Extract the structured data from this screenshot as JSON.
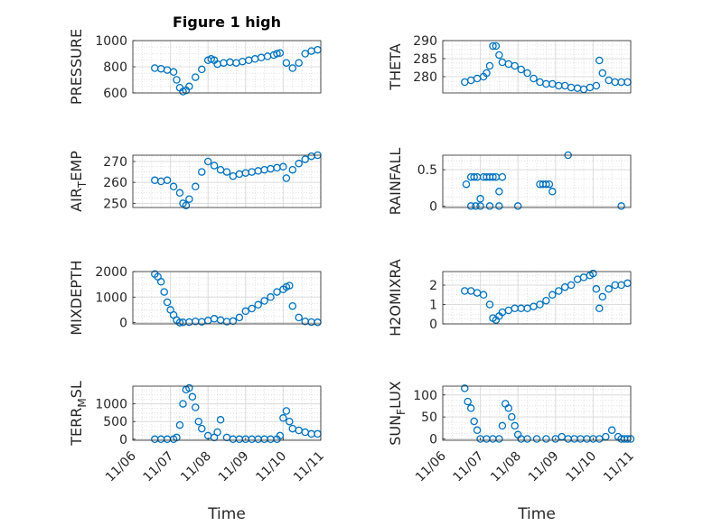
{
  "figure": {
    "title": "Figure 1 high",
    "xlabel": "Time"
  },
  "colors": {
    "marker": "#0072BD",
    "grid": "#d9d9d9",
    "axis": "#262626"
  },
  "chart_data": [
    {
      "type": "scatter",
      "ylabel": "PRESSURE",
      "ylabel_parts": [
        "PRESSURE"
      ],
      "xlim": [
        "11/06",
        "11/11"
      ],
      "ylim": [
        600,
        1000
      ],
      "yticks": [
        600,
        800,
        1000
      ],
      "xticks": [],
      "grid": true,
      "title": "Figure 1 high",
      "x": [
        "11/06 14:00",
        "11/06 18:00",
        "11/06 22:00",
        "11/07 02:00",
        "11/07 04:00",
        "11/07 06:00",
        "11/07 08:00",
        "11/07 10:00",
        "11/07 12:00",
        "11/07 16:00",
        "11/07 20:00",
        "11/08 00:00",
        "11/08 02:00",
        "11/08 04:00",
        "11/08 06:00",
        "11/08 10:00",
        "11/08 14:00",
        "11/08 18:00",
        "11/08 22:00",
        "11/09 02:00",
        "11/09 06:00",
        "11/09 10:00",
        "11/09 14:00",
        "11/09 18:00",
        "11/09 20:00",
        "11/09 22:00",
        "11/10 02:00",
        "11/10 06:00",
        "11/10 10:00",
        "11/10 14:00",
        "11/10 18:00",
        "11/10 22:00",
        "11/11 02:00",
        "11/11 06:00",
        "11/11 10:00",
        "11/11 14:00",
        "11/11 18:00",
        "11/11 22:00",
        "11/12 02:00",
        "11/12 06:00",
        "11/12 08:00"
      ],
      "y": [
        790,
        785,
        775,
        760,
        700,
        640,
        610,
        620,
        650,
        720,
        780,
        850,
        860,
        850,
        820,
        830,
        835,
        830,
        840,
        850,
        860,
        870,
        880,
        890,
        900,
        905,
        830,
        790,
        830,
        900,
        920,
        930,
        935,
        940,
        940,
        935,
        935,
        935,
        935,
        930,
        930
      ]
    },
    {
      "type": "scatter",
      "ylabel": "THETA",
      "ylabel_parts": [
        "THETA"
      ],
      "xlim": [
        "11/06",
        "11/11"
      ],
      "ylim": [
        275.5,
        290
      ],
      "yticks": [
        280,
        285,
        290
      ],
      "xticks": [],
      "grid": true,
      "x": [
        "11/06 14:00",
        "11/06 18:00",
        "11/06 22:00",
        "11/07 02:00",
        "11/07 04:00",
        "11/07 06:00",
        "11/07 08:00",
        "11/07 10:00",
        "11/07 12:00",
        "11/07 14:00",
        "11/07 18:00",
        "11/07 22:00",
        "11/08 02:00",
        "11/08 06:00",
        "11/08 10:00",
        "11/08 14:00",
        "11/08 18:00",
        "11/08 22:00",
        "11/09 02:00",
        "11/09 06:00",
        "11/09 10:00",
        "11/09 14:00",
        "11/09 18:00",
        "11/09 22:00",
        "11/10 02:00",
        "11/10 04:00",
        "11/10 06:00",
        "11/10 10:00",
        "11/10 14:00",
        "11/10 18:00",
        "11/10 22:00",
        "11/11 02:00",
        "11/11 06:00",
        "11/11 10:00",
        "11/11 14:00",
        "11/11 18:00",
        "11/11 22:00"
      ],
      "y": [
        278.5,
        279.0,
        279.5,
        280.0,
        281.0,
        283.0,
        288.5,
        288.5,
        286.0,
        284.0,
        283.5,
        283.0,
        282.0,
        281.0,
        279.5,
        278.5,
        278.0,
        278.0,
        277.5,
        277.5,
        277.0,
        276.8,
        276.5,
        277.0,
        277.5,
        284.5,
        281.0,
        279.0,
        278.5,
        278.5,
        278.5,
        278.5,
        278.6,
        278.6,
        278.7,
        278.7,
        278.6
      ]
    },
    {
      "type": "scatter",
      "ylabel": "AIR_TEMP",
      "ylabel_parts": [
        "AIR",
        "T",
        "EMP"
      ],
      "xlim": [
        "11/06",
        "11/11"
      ],
      "ylim": [
        248,
        273
      ],
      "yticks": [
        250,
        260,
        270
      ],
      "xticks": [],
      "grid": true,
      "x": [
        "11/06 14:00",
        "11/06 18:00",
        "11/06 22:00",
        "11/07 02:00",
        "11/07 06:00",
        "11/07 08:00",
        "11/07 10:00",
        "11/07 12:00",
        "11/07 16:00",
        "11/07 20:00",
        "11/08 00:00",
        "11/08 04:00",
        "11/08 08:00",
        "11/08 12:00",
        "11/08 16:00",
        "11/08 20:00",
        "11/09 00:00",
        "11/09 04:00",
        "11/09 08:00",
        "11/09 12:00",
        "11/09 16:00",
        "11/09 20:00",
        "11/10 00:00",
        "11/10 02:00",
        "11/10 06:00",
        "11/10 10:00",
        "11/10 14:00",
        "11/10 18:00",
        "11/10 22:00",
        "11/11 02:00",
        "11/11 06:00",
        "11/11 10:00",
        "11/11 14:00",
        "11/11 18:00",
        "11/11 22:00",
        "11/12 02:00",
        "11/12 06:00"
      ],
      "y": [
        261,
        260.5,
        261,
        258,
        255,
        250,
        249,
        252,
        258,
        265,
        270,
        268,
        266,
        265,
        263,
        264,
        264.5,
        265,
        265.5,
        266,
        266.5,
        267,
        267.5,
        262,
        266,
        269,
        271,
        272.5,
        273,
        273,
        273,
        273,
        273,
        273,
        272.5,
        272.5,
        272.5
      ]
    },
    {
      "type": "scatter",
      "ylabel": "RAINFALL",
      "ylabel_parts": [
        "RAINFALL"
      ],
      "xlim": [
        "11/06",
        "11/11"
      ],
      "ylim": [
        -0.02,
        0.7
      ],
      "yticks": [
        0,
        0.5
      ],
      "ytick_labels": [
        "0",
        "0.5"
      ],
      "xticks": [],
      "grid": true,
      "x": [
        "11/06 15:00",
        "11/06 18:00",
        "11/06 20:00",
        "11/06 22:00",
        "11/07 00:00",
        "11/07 02:00",
        "11/07 04:00",
        "11/07 06:00",
        "11/07 08:00",
        "11/07 10:00",
        "11/07 12:00",
        "11/07 14:00",
        "11/06 18:00",
        "11/06 21:00",
        "11/07 00:00",
        "11/07 06:00",
        "11/07 12:00",
        "11/08 00:00",
        "11/08 14:00",
        "11/08 18:00",
        "11/08 22:00",
        "11/08 20:00",
        "11/08 16:00",
        "11/09 08:00",
        "11/10 18:00",
        "11/11 20:00"
      ],
      "y": [
        0.3,
        0.4,
        0.4,
        0.4,
        0.1,
        0.4,
        0.4,
        0.4,
        0.4,
        0.4,
        0.2,
        0.4,
        0.0,
        0.0,
        0.0,
        0.0,
        0.0,
        0.0,
        0.3,
        0.3,
        0.2,
        0.3,
        0.3,
        0.7,
        0.0,
        0.0
      ]
    },
    {
      "type": "scatter",
      "ylabel": "MIXDEPTH",
      "ylabel_parts": [
        "MIXDEPTH"
      ],
      "xlim": [
        "11/06",
        "11/11"
      ],
      "ylim": [
        -50,
        2000
      ],
      "yticks": [
        0,
        1000,
        2000
      ],
      "xticks": [],
      "grid": true,
      "x": [
        "11/06 14:00",
        "11/06 16:00",
        "11/06 18:00",
        "11/06 20:00",
        "11/06 22:00",
        "11/07 00:00",
        "11/07 02:00",
        "11/07 04:00",
        "11/07 06:00",
        "11/07 08:00",
        "11/07 12:00",
        "11/07 16:00",
        "11/07 20:00",
        "11/08 00:00",
        "11/08 04:00",
        "11/08 08:00",
        "11/08 12:00",
        "11/08 16:00",
        "11/08 20:00",
        "11/09 00:00",
        "11/09 04:00",
        "11/09 08:00",
        "11/09 12:00",
        "11/09 16:00",
        "11/09 20:00",
        "11/10 00:00",
        "11/10 02:00",
        "11/10 04:00",
        "11/10 06:00",
        "11/10 10:00",
        "11/10 14:00",
        "11/10 18:00",
        "11/10 22:00",
        "11/11 02:00",
        "11/11 06:00",
        "11/11 10:00",
        "11/11 14:00",
        "11/11 18:00",
        "11/11 22:00"
      ],
      "y": [
        1900,
        1800,
        1600,
        1200,
        800,
        500,
        300,
        100,
        0,
        10,
        20,
        50,
        30,
        80,
        150,
        100,
        40,
        60,
        200,
        450,
        550,
        700,
        850,
        1000,
        1200,
        1300,
        1400,
        1450,
        650,
        200,
        50,
        20,
        10,
        20,
        30,
        50,
        80,
        120,
        150
      ]
    },
    {
      "type": "scatter",
      "ylabel": "H2OMIXRA",
      "ylabel_parts": [
        "H2OMIXRA"
      ],
      "xlim": [
        "11/06",
        "11/11"
      ],
      "ylim": [
        0,
        2.7
      ],
      "yticks": [
        0,
        1,
        2
      ],
      "xticks": [],
      "grid": true,
      "x": [
        "11/06 14:00",
        "11/06 18:00",
        "11/06 22:00",
        "11/07 02:00",
        "11/07 06:00",
        "11/07 08:00",
        "11/07 10:00",
        "11/07 12:00",
        "11/07 14:00",
        "11/07 18:00",
        "11/07 22:00",
        "11/08 02:00",
        "11/08 06:00",
        "11/08 10:00",
        "11/08 14:00",
        "11/08 18:00",
        "11/08 22:00",
        "11/09 02:00",
        "11/09 06:00",
        "11/09 10:00",
        "11/09 14:00",
        "11/09 18:00",
        "11/09 22:00",
        "11/10 00:00",
        "11/10 02:00",
        "11/10 04:00",
        "11/10 06:00",
        "11/10 10:00",
        "11/10 14:00",
        "11/10 18:00",
        "11/10 22:00",
        "11/11 02:00",
        "11/11 06:00",
        "11/11 10:00",
        "11/11 14:00",
        "11/11 18:00",
        "11/11 22:00"
      ],
      "y": [
        1.7,
        1.7,
        1.6,
        1.5,
        1.0,
        0.3,
        0.2,
        0.4,
        0.6,
        0.7,
        0.8,
        0.8,
        0.8,
        0.9,
        1.0,
        1.2,
        1.5,
        1.7,
        1.9,
        2.0,
        2.3,
        2.4,
        2.5,
        2.6,
        1.8,
        0.8,
        1.4,
        1.8,
        2.0,
        2.0,
        2.1,
        2.1,
        2.1,
        2.1,
        2.2,
        2.2,
        2.2
      ]
    },
    {
      "type": "scatter",
      "ylabel": "TERR_MSL",
      "ylabel_parts": [
        "TERR",
        "M",
        "SL"
      ],
      "xlim": [
        "11/06",
        "11/11"
      ],
      "ylim": [
        -30,
        1500
      ],
      "yticks": [
        0,
        500,
        1000
      ],
      "xticks": [
        "11/06",
        "11/07",
        "11/08",
        "11/09",
        "11/10",
        "11/11"
      ],
      "grid": true,
      "x": [
        "11/06 14:00",
        "11/06 18:00",
        "11/06 22:00",
        "11/07 02:00",
        "11/07 04:00",
        "11/07 06:00",
        "11/07 08:00",
        "11/07 10:00",
        "11/07 12:00",
        "11/07 14:00",
        "11/07 16:00",
        "11/07 18:00",
        "11/07 20:00",
        "11/08 00:00",
        "11/08 04:00",
        "11/08 06:00",
        "11/08 08:00",
        "11/08 12:00",
        "11/08 16:00",
        "11/08 20:00",
        "11/09 00:00",
        "11/09 04:00",
        "11/09 08:00",
        "11/09 12:00",
        "11/09 16:00",
        "11/09 20:00",
        "11/09 22:00",
        "11/10 00:00",
        "11/10 02:00",
        "11/10 04:00",
        "11/10 06:00",
        "11/10 10:00",
        "11/10 14:00",
        "11/10 18:00",
        "11/10 22:00",
        "11/11 02:00",
        "11/11 06:00",
        "11/11 10:00",
        "11/11 14:00",
        "11/11 18:00",
        "11/11 22:00"
      ],
      "y": [
        0,
        0,
        0,
        0,
        50,
        400,
        1000,
        1400,
        1450,
        1200,
        900,
        500,
        300,
        100,
        50,
        200,
        550,
        50,
        0,
        0,
        0,
        0,
        0,
        0,
        0,
        0,
        100,
        600,
        800,
        500,
        300,
        250,
        200,
        150,
        150,
        180,
        200,
        220,
        250,
        270,
        280
      ]
    },
    {
      "type": "scatter",
      "ylabel": "SUN_FLUX",
      "ylabel_parts": [
        "SUN",
        "F",
        "LUX"
      ],
      "xlim": [
        "11/06",
        "11/11"
      ],
      "ylim": [
        -3,
        120
      ],
      "yticks": [
        0,
        50,
        100
      ],
      "xticks": [
        "11/06",
        "11/07",
        "11/08",
        "11/09",
        "11/10",
        "11/11"
      ],
      "grid": true,
      "x": [
        "11/06 14:00",
        "11/06 16:00",
        "11/06 18:00",
        "11/06 20:00",
        "11/06 22:00",
        "11/07 00:00",
        "11/07 04:00",
        "11/07 08:00",
        "11/07 12:00",
        "11/07 14:00",
        "11/07 16:00",
        "11/07 18:00",
        "11/07 20:00",
        "11/07 22:00",
        "11/08 00:00",
        "11/08 02:00",
        "11/08 06:00",
        "11/08 12:00",
        "11/08 18:00",
        "11/09 00:00",
        "11/09 04:00",
        "11/09 08:00",
        "11/09 12:00",
        "11/09 16:00",
        "11/09 20:00",
        "11/10 00:00",
        "11/10 04:00",
        "11/10 08:00",
        "11/10 12:00",
        "11/10 16:00",
        "11/10 18:00",
        "11/10 20:00",
        "11/10 22:00",
        "11/11 00:00",
        "11/11 02:00",
        "11/11 04:00",
        "11/11 08:00",
        "11/11 12:00",
        "11/11 16:00",
        "11/11 18:00",
        "11/11 20:00",
        "11/11 22:00"
      ],
      "y": [
        115,
        85,
        70,
        40,
        20,
        0,
        0,
        0,
        0,
        30,
        80,
        70,
        50,
        30,
        10,
        0,
        0,
        0,
        0,
        0,
        5,
        0,
        0,
        0,
        0,
        0,
        0,
        5,
        20,
        5,
        0,
        0,
        0,
        0,
        0,
        0,
        0,
        0,
        5,
        20,
        25,
        10
      ]
    }
  ]
}
